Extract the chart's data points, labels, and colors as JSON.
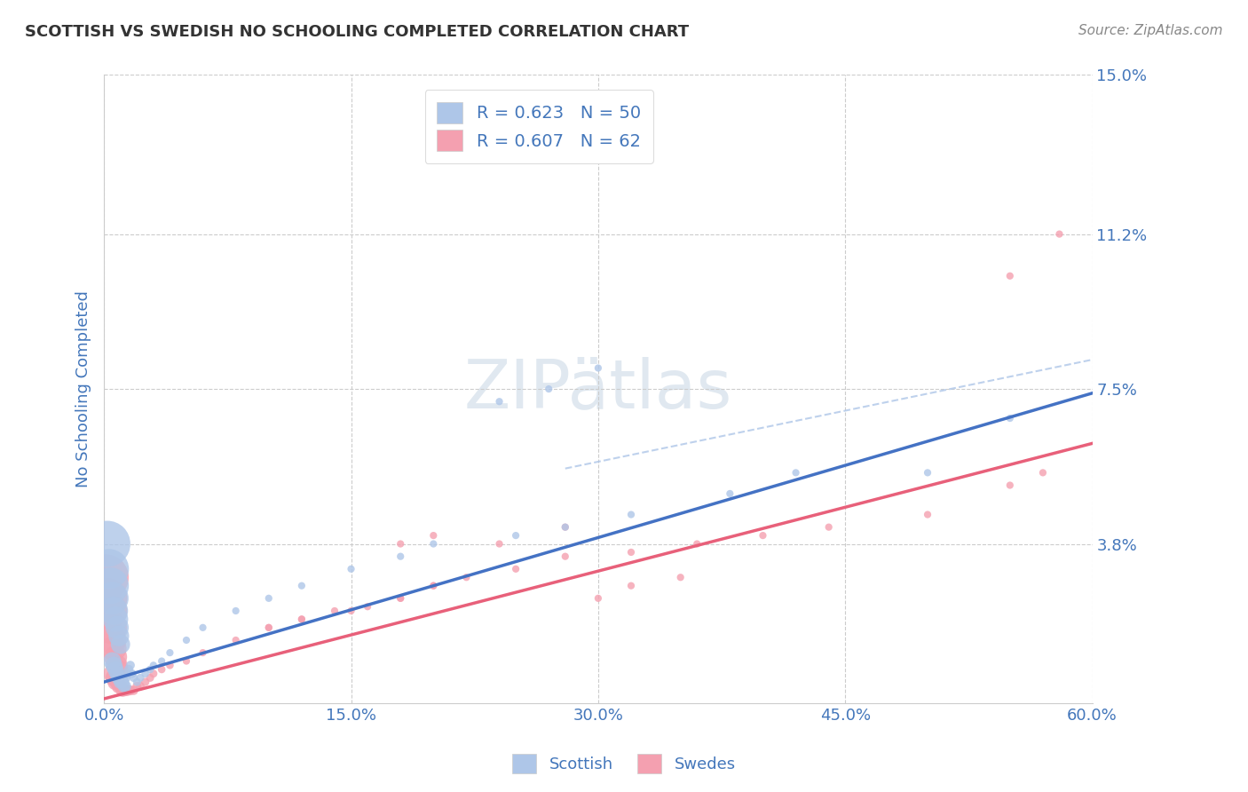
{
  "title": "SCOTTISH VS SWEDISH NO SCHOOLING COMPLETED CORRELATION CHART",
  "source": "Source: ZipAtlas.com",
  "ylabel": "No Schooling Completed",
  "xlim": [
    0.0,
    0.6
  ],
  "ylim": [
    0.0,
    0.15
  ],
  "xtick_positions": [
    0.0,
    0.15,
    0.3,
    0.45,
    0.6
  ],
  "xticklabels": [
    "0.0%",
    "15.0%",
    "30.0%",
    "45.0%",
    "60.0%"
  ],
  "ytick_positions": [
    0.038,
    0.075,
    0.112,
    0.15
  ],
  "ytick_labels": [
    "3.8%",
    "7.5%",
    "11.2%",
    "15.0%"
  ],
  "grid_color": "#cccccc",
  "background_color": "#ffffff",
  "scottish_color": "#aec6e8",
  "swedes_color": "#f4a0b0",
  "scottish_line_color": "#4472c4",
  "swedes_line_color": "#e8607a",
  "dashed_line_color": "#aec6e8",
  "title_color": "#333333",
  "tick_label_color": "#4477bb",
  "legend_text_color": "#4477bb",
  "scottish_x": [
    0.002,
    0.003,
    0.004,
    0.005,
    0.006,
    0.007,
    0.008,
    0.009,
    0.01,
    0.005,
    0.006,
    0.007,
    0.008,
    0.009,
    0.01,
    0.011,
    0.012,
    0.013,
    0.012,
    0.013,
    0.014,
    0.015,
    0.016,
    0.017,
    0.018,
    0.02,
    0.022,
    0.025,
    0.028,
    0.03,
    0.035,
    0.04,
    0.05,
    0.06,
    0.08,
    0.1,
    0.12,
    0.15,
    0.18,
    0.2,
    0.25,
    0.28,
    0.32,
    0.38,
    0.42,
    0.5,
    0.24,
    0.27,
    0.3,
    0.55
  ],
  "scottish_y": [
    0.038,
    0.032,
    0.028,
    0.025,
    0.022,
    0.02,
    0.018,
    0.016,
    0.014,
    0.01,
    0.009,
    0.008,
    0.007,
    0.006,
    0.005,
    0.005,
    0.004,
    0.004,
    0.005,
    0.006,
    0.007,
    0.008,
    0.009,
    0.007,
    0.006,
    0.005,
    0.006,
    0.007,
    0.008,
    0.009,
    0.01,
    0.012,
    0.015,
    0.018,
    0.022,
    0.025,
    0.028,
    0.032,
    0.035,
    0.038,
    0.04,
    0.042,
    0.045,
    0.05,
    0.055,
    0.055,
    0.072,
    0.075,
    0.08,
    0.068
  ],
  "scottish_sizes": [
    400,
    300,
    250,
    200,
    150,
    120,
    100,
    80,
    70,
    60,
    55,
    50,
    45,
    40,
    35,
    30,
    28,
    25,
    22,
    20,
    18,
    16,
    15,
    14,
    13,
    12,
    12,
    11,
    11,
    10,
    10,
    10,
    10,
    10,
    10,
    10,
    10,
    10,
    10,
    10,
    10,
    10,
    10,
    10,
    10,
    10,
    10,
    10,
    10,
    10
  ],
  "swedes_x": [
    0.001,
    0.002,
    0.003,
    0.004,
    0.005,
    0.006,
    0.007,
    0.008,
    0.009,
    0.005,
    0.006,
    0.007,
    0.008,
    0.009,
    0.01,
    0.011,
    0.012,
    0.013,
    0.014,
    0.015,
    0.016,
    0.018,
    0.02,
    0.022,
    0.025,
    0.028,
    0.03,
    0.035,
    0.04,
    0.05,
    0.06,
    0.08,
    0.1,
    0.12,
    0.15,
    0.18,
    0.2,
    0.25,
    0.28,
    0.32,
    0.36,
    0.4,
    0.44,
    0.5,
    0.18,
    0.2,
    0.24,
    0.28,
    0.55,
    0.57,
    0.55,
    0.58,
    0.3,
    0.32,
    0.35,
    0.1,
    0.12,
    0.14,
    0.16,
    0.18,
    0.2,
    0.22
  ],
  "swedes_y": [
    0.03,
    0.025,
    0.022,
    0.018,
    0.015,
    0.013,
    0.011,
    0.009,
    0.008,
    0.007,
    0.006,
    0.005,
    0.005,
    0.004,
    0.004,
    0.003,
    0.003,
    0.003,
    0.003,
    0.003,
    0.003,
    0.003,
    0.004,
    0.004,
    0.005,
    0.006,
    0.007,
    0.008,
    0.009,
    0.01,
    0.012,
    0.015,
    0.018,
    0.02,
    0.022,
    0.025,
    0.028,
    0.032,
    0.035,
    0.036,
    0.038,
    0.04,
    0.042,
    0.045,
    0.038,
    0.04,
    0.038,
    0.042,
    0.052,
    0.055,
    0.102,
    0.112,
    0.025,
    0.028,
    0.03,
    0.018,
    0.02,
    0.022,
    0.023,
    0.025,
    0.028,
    0.03
  ],
  "swedes_sizes": [
    400,
    300,
    250,
    200,
    150,
    120,
    100,
    80,
    70,
    60,
    55,
    50,
    45,
    40,
    35,
    30,
    28,
    25,
    22,
    20,
    18,
    16,
    15,
    14,
    13,
    12,
    12,
    11,
    11,
    10,
    10,
    10,
    10,
    10,
    10,
    10,
    10,
    10,
    10,
    10,
    10,
    10,
    10,
    10,
    10,
    10,
    10,
    10,
    10,
    10,
    10,
    10,
    10,
    10,
    10,
    10,
    10,
    10,
    10,
    10,
    10,
    10
  ],
  "blue_line_x0": 0.0,
  "blue_line_y0": 0.005,
  "blue_line_x1": 0.6,
  "blue_line_y1": 0.074,
  "pink_line_x0": 0.0,
  "pink_line_y0": 0.001,
  "pink_line_x1": 0.6,
  "pink_line_y1": 0.062,
  "dashed_line_x0": 0.28,
  "dashed_line_y0": 0.056,
  "dashed_line_x1": 0.6,
  "dashed_line_y1": 0.082
}
